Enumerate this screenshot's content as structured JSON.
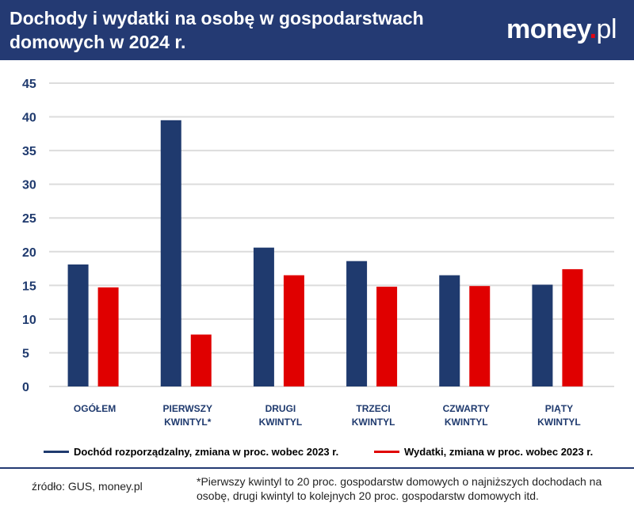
{
  "header": {
    "title": "Dochody i wydatki na osobę w gospodarstwach domowych w 2024 r.",
    "logo": "money.pl"
  },
  "colors": {
    "header": "#243a73",
    "income": "#1f3a6e",
    "expenses": "#e00000"
  },
  "chart_data": {
    "type": "bar",
    "categories": [
      [
        "OGÓŁEM"
      ],
      [
        "PIERWSZY",
        "KWINTYL*"
      ],
      [
        "DRUGI",
        "KWINTYL"
      ],
      [
        "TRZECI",
        "KWINTYL"
      ],
      [
        "CZWARTY",
        "KWINTYL"
      ],
      [
        "PIĄTY",
        "KWINTYL"
      ]
    ],
    "series": [
      {
        "name": "Dochód rozporządzalny, zmiana w proc. wobec 2023 r.",
        "values": [
          18.1,
          39.5,
          20.6,
          18.6,
          16.5,
          15.1
        ]
      },
      {
        "name": "Wydatki, zmiana w proc. wobec 2023 r.",
        "values": [
          14.7,
          7.7,
          16.5,
          14.8,
          14.9,
          17.4
        ]
      }
    ],
    "yticks": [
      "0",
      "5",
      "10",
      "15",
      "20",
      "25",
      "30",
      "35",
      "40",
      "45"
    ],
    "ylim": [
      0,
      45
    ],
    "grid": true,
    "legend": "bottom"
  },
  "footer": {
    "source": "źródło: GUS, money.pl",
    "note": "*Pierwszy kwintyl to 20 proc. gospodarstw domowych o najniższych dochodach na osobę, drugi kwintyl to kolejnych 20 proc. gospodarstw domowych itd."
  }
}
